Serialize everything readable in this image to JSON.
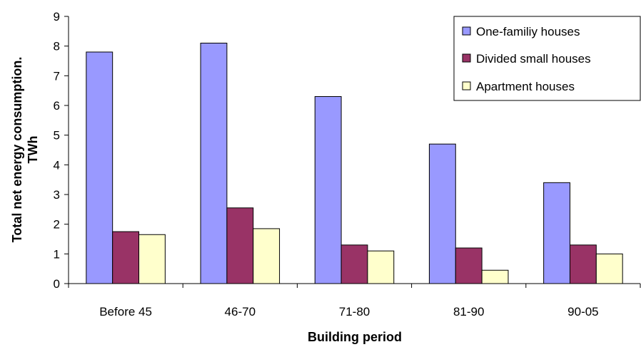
{
  "chart_data": {
    "type": "bar",
    "title": "",
    "xlabel": "Building period",
    "ylabel_line1": "Total net energy consumption.",
    "ylabel_line2": "TWh",
    "categories": [
      "Before 45",
      "46-70",
      "71-80",
      "81-90",
      "90-05"
    ],
    "ylim": [
      0,
      9
    ],
    "yticks": [
      "0",
      "1",
      "2",
      "3",
      "4",
      "5",
      "6",
      "7",
      "8",
      "9"
    ],
    "grid": false,
    "legend_position": "top-right",
    "series": [
      {
        "name": "One-familiy houses",
        "color": "#9999ff",
        "values": [
          7.8,
          8.1,
          6.3,
          4.7,
          3.4
        ]
      },
      {
        "name": "Divided small houses",
        "color": "#993366",
        "values": [
          1.75,
          2.55,
          1.3,
          1.2,
          1.3
        ]
      },
      {
        "name": "Apartment houses",
        "color": "#ffffcc",
        "values": [
          1.65,
          1.85,
          1.1,
          0.45,
          1.0
        ]
      }
    ]
  }
}
